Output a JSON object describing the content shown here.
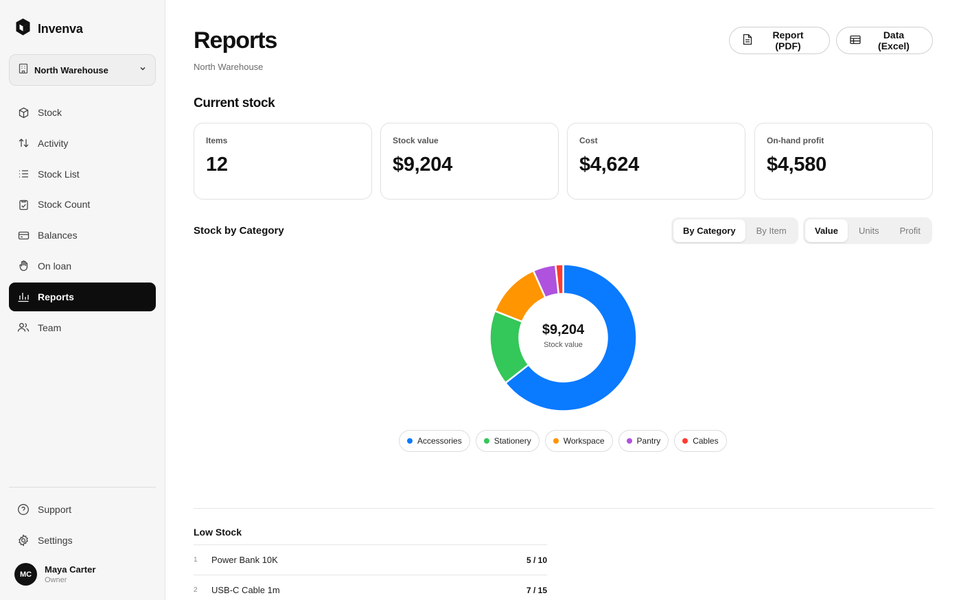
{
  "app": {
    "name": "Invenva"
  },
  "warehouse": {
    "selected": "North Warehouse"
  },
  "nav": {
    "items": [
      {
        "label": "Stock",
        "icon": "box-icon"
      },
      {
        "label": "Activity",
        "icon": "arrows-updown-icon"
      },
      {
        "label": "Stock List",
        "icon": "list-icon"
      },
      {
        "label": "Stock Count",
        "icon": "clipboard-check-icon"
      },
      {
        "label": "Balances",
        "icon": "wallet-icon"
      },
      {
        "label": "On loan",
        "icon": "hand-icon"
      },
      {
        "label": "Reports",
        "icon": "bar-chart-icon",
        "active": true
      },
      {
        "label": "Team",
        "icon": "users-icon"
      }
    ],
    "bottom": [
      {
        "label": "Support",
        "icon": "help-circle-icon"
      },
      {
        "label": "Settings",
        "icon": "gear-icon"
      }
    ]
  },
  "user": {
    "initials": "MC",
    "name": "Maya Carter",
    "role": "Owner"
  },
  "header": {
    "title": "Reports",
    "subtitle": "North Warehouse",
    "pdf_button": "Report (PDF)",
    "excel_button": "Data (Excel)"
  },
  "current_stock": {
    "title": "Current stock",
    "stats": [
      {
        "label": "Items",
        "value": "12"
      },
      {
        "label": "Stock value",
        "value": "$9,204"
      },
      {
        "label": "Cost",
        "value": "$4,624"
      },
      {
        "label": "On-hand profit",
        "value": "$4,580"
      }
    ]
  },
  "category_section": {
    "title": "Stock by Category",
    "group_tabs": [
      {
        "label": "By Category",
        "active": true
      },
      {
        "label": "By Item",
        "active": false
      }
    ],
    "metric_tabs": [
      {
        "label": "Value",
        "active": true
      },
      {
        "label": "Units",
        "active": false
      },
      {
        "label": "Profit",
        "active": false
      }
    ],
    "center_value": "$9,204",
    "center_label": "Stock value"
  },
  "chart_data": {
    "type": "pie",
    "categories": [
      "Accessories",
      "Stationery",
      "Workspace",
      "Pantry",
      "Cables"
    ],
    "values": [
      5930,
      1520,
      1140,
      460,
      154
    ],
    "colors": [
      "#0a7aff",
      "#34c759",
      "#ff9500",
      "#af52de",
      "#ff3b30"
    ],
    "center_text": "$9,204"
  },
  "low_stock": {
    "title": "Low Stock",
    "rows": [
      {
        "num": "1",
        "name": "Power Bank 10K",
        "qty": "5 / 10"
      },
      {
        "num": "2",
        "name": "USB-C Cable 1m",
        "qty": "7 / 15"
      }
    ]
  }
}
